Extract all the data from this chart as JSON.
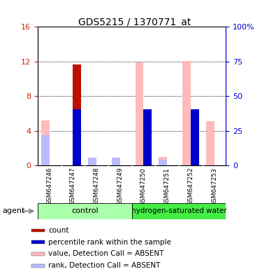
{
  "title": "GDS5215 / 1370771_at",
  "samples": [
    "GSM647246",
    "GSM647247",
    "GSM647248",
    "GSM647249",
    "GSM647250",
    "GSM647251",
    "GSM647252",
    "GSM647253"
  ],
  "ylim_left": [
    0,
    16
  ],
  "ylim_right": [
    0,
    100
  ],
  "yticks_left": [
    0,
    4,
    8,
    12,
    16
  ],
  "yticks_right": [
    0,
    25,
    50,
    75,
    100
  ],
  "yticklabels_right": [
    "0",
    "25",
    "50",
    "75",
    "100%"
  ],
  "count_bars": [
    0,
    11.7,
    0,
    0,
    0,
    0,
    0,
    0
  ],
  "rank_bars": [
    0,
    6.5,
    0,
    0,
    6.5,
    0,
    6.5,
    0
  ],
  "value_absent_bars": [
    5.2,
    0,
    0.3,
    0.3,
    11.9,
    1.0,
    12.1,
    5.1
  ],
  "rank_absent_bars": [
    3.5,
    0,
    0.9,
    0.9,
    0,
    0.7,
    0,
    0
  ],
  "count_color": "#bb1100",
  "rank_color": "#0000cc",
  "value_absent_color": "#ffbbbb",
  "rank_absent_color": "#bbbbff",
  "left_axis_color": "#cc2200",
  "right_axis_color": "#0000cc",
  "sample_bg_color": "#cccccc",
  "control_color": "#aaffaa",
  "hydrogen_color": "#44ee44",
  "bar_width": 0.35,
  "legend_items": [
    [
      "#bb1100",
      "count"
    ],
    [
      "#0000cc",
      "percentile rank within the sample"
    ],
    [
      "#ffbbbb",
      "value, Detection Call = ABSENT"
    ],
    [
      "#bbbbff",
      "rank, Detection Call = ABSENT"
    ]
  ]
}
